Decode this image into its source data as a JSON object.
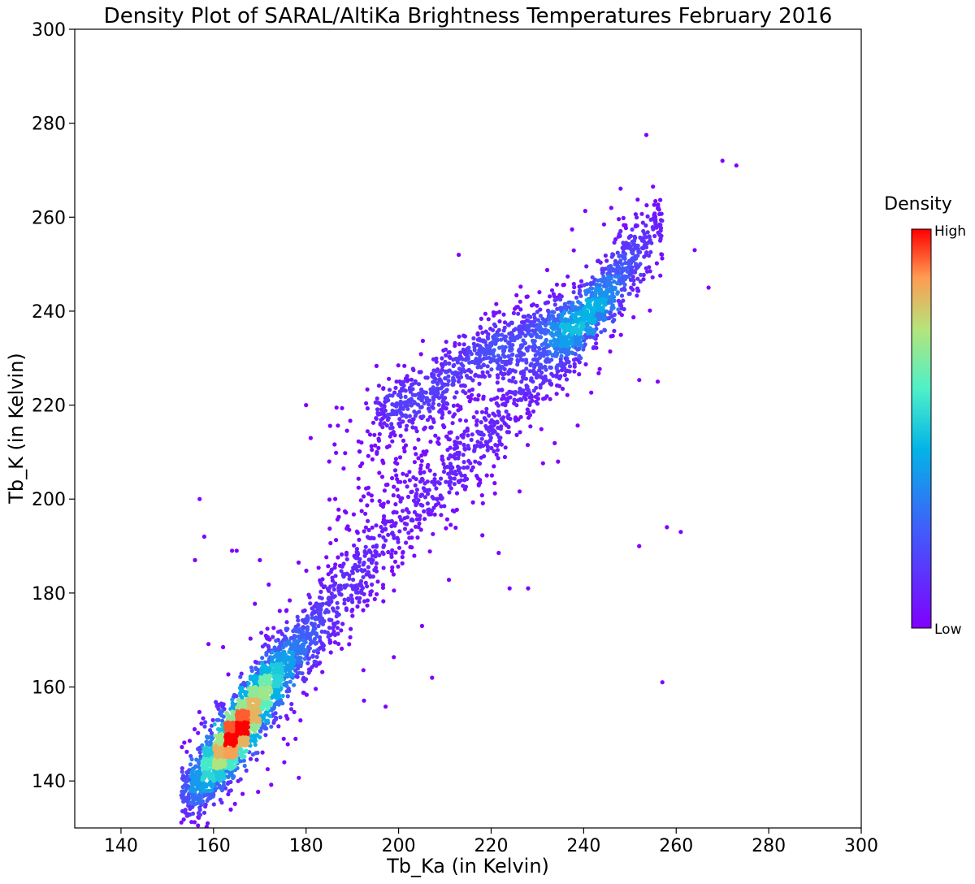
{
  "chart_data": {
    "type": "scatter",
    "title": "Density Plot of SARAL/AltiKa Brightness Temperatures February 2016",
    "xlabel": "Tb_Ka (in Kelvin)",
    "ylabel": "Tb_K (in Kelvin)",
    "xlim": [
      130,
      300
    ],
    "ylim": [
      130,
      300
    ],
    "xticks": [
      140,
      160,
      180,
      200,
      220,
      240,
      260,
      280,
      300
    ],
    "yticks": [
      140,
      160,
      180,
      200,
      220,
      240,
      260,
      280,
      300
    ],
    "grid": false,
    "colormap": "rainbow",
    "colorbar": {
      "title": "Density",
      "high_label": "High",
      "low_label": "Low",
      "placement": "right"
    },
    "structure": {
      "main_ridge": [
        [
          154,
          137
        ],
        [
          160,
          144
        ],
        [
          165,
          150
        ],
        [
          170,
          158
        ],
        [
          180,
          170
        ],
        [
          190,
          182
        ],
        [
          200,
          193
        ],
        [
          210,
          203
        ],
        [
          220,
          214
        ],
        [
          230,
          226
        ],
        [
          240,
          238
        ],
        [
          250,
          250
        ],
        [
          256,
          258
        ]
      ],
      "upper_branch": [
        [
          195,
          218
        ],
        [
          205,
          222
        ],
        [
          215,
          230
        ],
        [
          225,
          234
        ],
        [
          235,
          238
        ]
      ],
      "density_peaks": [
        {
          "x": 165,
          "y": 150,
          "level": "high"
        },
        {
          "x": 170,
          "y": 157,
          "level": "medium-high"
        },
        {
          "x": 243,
          "y": 245,
          "level": "medium"
        }
      ],
      "outliers": [
        [
          157,
          200
        ],
        [
          158,
          192
        ],
        [
          156,
          187
        ],
        [
          164,
          189
        ],
        [
          165,
          189
        ],
        [
          170,
          187
        ],
        [
          180,
          220
        ],
        [
          181,
          213
        ],
        [
          185,
          208
        ],
        [
          213,
          252
        ],
        [
          224,
          181
        ],
        [
          228,
          181
        ],
        [
          257,
          161
        ],
        [
          258,
          194
        ],
        [
          261,
          193
        ],
        [
          267,
          245
        ],
        [
          273,
          271
        ],
        [
          270,
          272
        ],
        [
          252,
          190
        ],
        [
          264,
          253
        ],
        [
          256,
          225
        ]
      ]
    }
  }
}
